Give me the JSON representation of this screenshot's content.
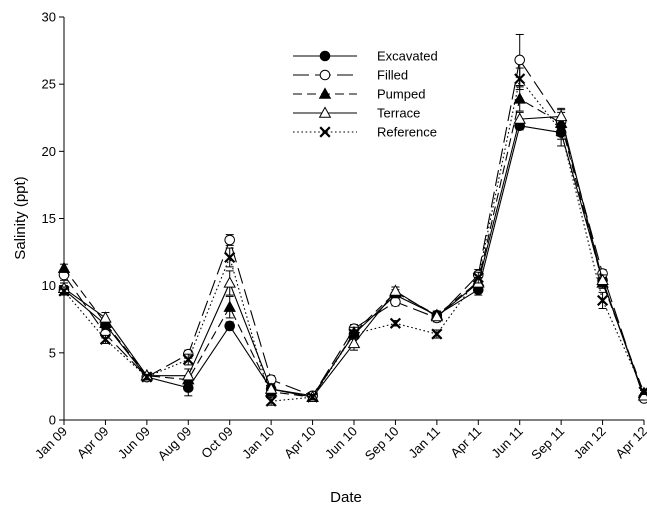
{
  "chart_data": {
    "type": "line",
    "xlabel": "Date",
    "ylabel": "Salinity (ppt)",
    "categories": [
      "Jan 09",
      "Apr 09",
      "Jun 09",
      "Aug 09",
      "Oct 09",
      "Jan 10",
      "Apr 10",
      "Jun 10",
      "Sep 10",
      "Jan 11",
      "Apr 11",
      "Jun 11",
      "Sep 11",
      "Jan 12",
      "Apr 12"
    ],
    "ylim": [
      0,
      30
    ],
    "yticks": [
      "0",
      "5",
      "10",
      "15",
      "20",
      "25",
      "30"
    ],
    "legend_position": "top-center",
    "grid": false,
    "series": [
      {
        "name": "Excavated",
        "marker": "filled-circle",
        "dash": "solid",
        "values": [
          9.7,
          7.1,
          3.2,
          2.4,
          7.0,
          2.3,
          1.8,
          6.4,
          9.3,
          7.8,
          9.7,
          21.9,
          21.4,
          10.4,
          1.7
        ],
        "errors": [
          0.3,
          0.3,
          0.2,
          0.6,
          0.3,
          0.3,
          0.2,
          0.4,
          0.4,
          0.3,
          0.4,
          0.3,
          1.0,
          0.4,
          0.2
        ]
      },
      {
        "name": "Filled",
        "marker": "open-circle",
        "dash": "long-dash",
        "values": [
          10.8,
          6.4,
          3.2,
          4.9,
          13.4,
          3.0,
          1.8,
          6.8,
          8.8,
          7.6,
          10.8,
          26.8,
          22.2,
          10.9,
          1.6
        ],
        "errors": [
          0.4,
          0.3,
          0.2,
          0.3,
          0.4,
          0.3,
          0.2,
          0.3,
          0.3,
          0.3,
          0.4,
          1.9,
          1.0,
          0.3,
          0.2
        ]
      },
      {
        "name": "Pumped",
        "marker": "filled-triangle",
        "dash": "dash",
        "values": [
          11.3,
          7.2,
          3.3,
          3.0,
          8.4,
          2.1,
          1.7,
          6.5,
          9.5,
          7.8,
          10.3,
          23.9,
          22.1,
          10.2,
          2.0
        ],
        "errors": [
          0.3,
          0.3,
          0.2,
          0.3,
          0.8,
          0.3,
          0.2,
          0.4,
          0.4,
          0.3,
          0.3,
          0.9,
          0.8,
          0.4,
          0.2
        ]
      },
      {
        "name": "Terrace",
        "marker": "open-triangle",
        "dash": "solid",
        "values": [
          9.8,
          7.6,
          3.3,
          3.3,
          10.2,
          2.3,
          1.7,
          5.7,
          9.6,
          7.7,
          10.2,
          22.4,
          22.6,
          10.4,
          1.8
        ],
        "errors": [
          0.4,
          0.4,
          0.2,
          0.5,
          0.9,
          0.4,
          0.2,
          0.5,
          0.3,
          0.3,
          0.4,
          0.5,
          0.5,
          0.4,
          0.2
        ]
      },
      {
        "name": "Reference",
        "marker": "x",
        "dash": "dotted",
        "values": [
          9.6,
          6.0,
          3.2,
          4.5,
          12.1,
          1.4,
          1.7,
          6.4,
          7.2,
          6.4,
          10.6,
          25.4,
          21.5,
          8.9,
          2.1
        ],
        "errors": [
          0.3,
          0.3,
          0.2,
          0.4,
          0.7,
          0.3,
          0.2,
          0.3,
          0.2,
          0.3,
          0.4,
          0.8,
          0.6,
          0.6,
          0.2
        ]
      }
    ]
  }
}
